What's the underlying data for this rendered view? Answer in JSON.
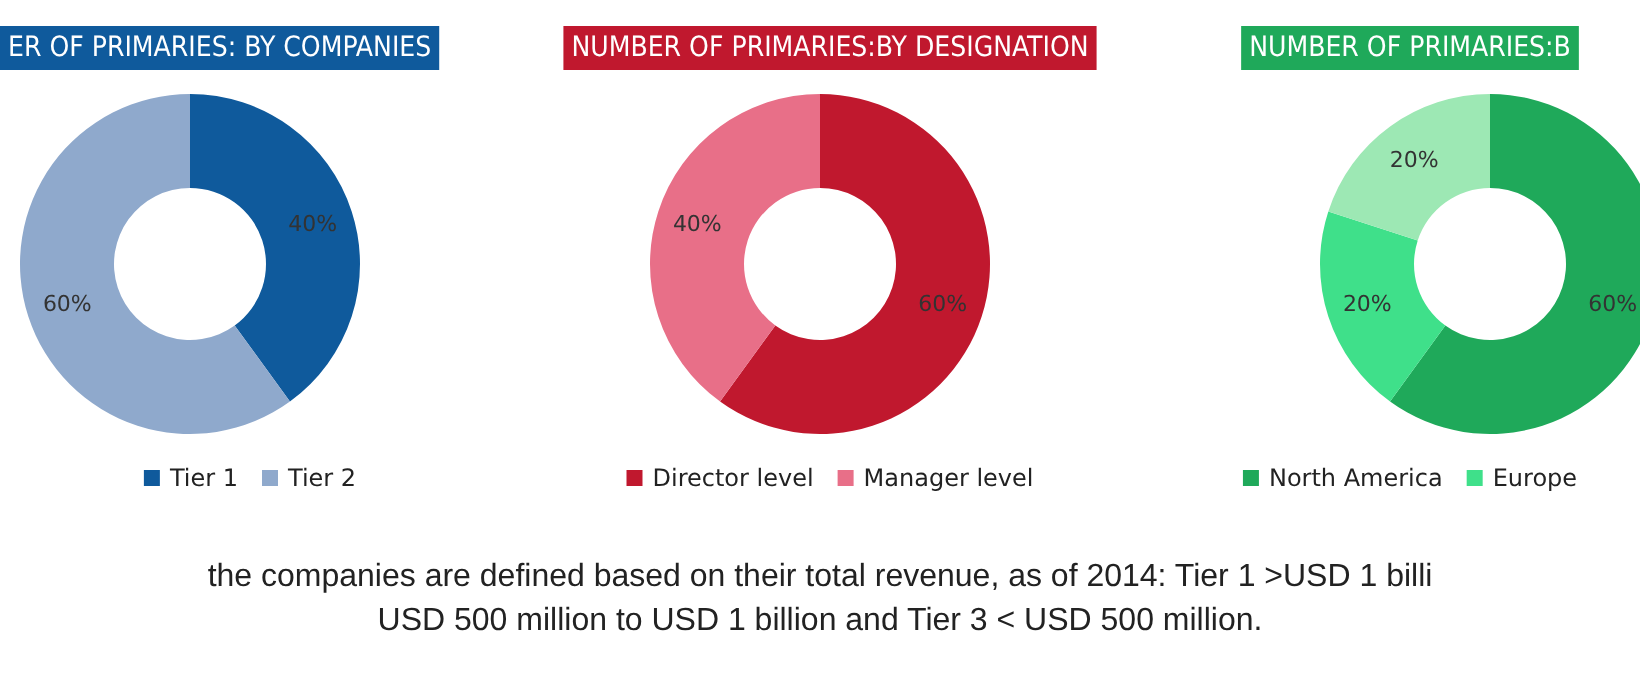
{
  "chart_data": [
    {
      "type": "donut",
      "title": "ER OF PRIMARIES: BY COMPANIES",
      "categories": [
        "Tier 1",
        "Tier 2"
      ],
      "values": [
        40,
        60
      ],
      "colors": [
        "#0f5a9c",
        "#8fa9cc"
      ],
      "value_labels": [
        "40%",
        "60%"
      ],
      "legend": "bottom"
    },
    {
      "type": "donut",
      "title": "NUMBER OF PRIMARIES:BY DESIGNATION",
      "categories": [
        "Director level",
        "Manager level"
      ],
      "values": [
        60,
        40
      ],
      "colors": [
        "#c0182e",
        "#e86f88"
      ],
      "value_labels": [
        "60%",
        "40%"
      ],
      "legend": "bottom"
    },
    {
      "type": "donut",
      "title": "NUMBER OF PRIMARIES:B",
      "categories": [
        "North America",
        "Europe",
        null
      ],
      "values": [
        60,
        20,
        20
      ],
      "colors": [
        "#1fa95a",
        "#3fe08a",
        "#9de8b4"
      ],
      "value_labels": [
        "60%",
        "20%",
        "20%"
      ],
      "legend": "bottom"
    },
    {
      "type": "other",
      "annotations": [
        "the companies are defined based on their total revenue, as of 2014: Tier 1 >USD 1 billi",
        "USD 500 million to USD 1 billion and Tier 3 < USD 500 million."
      ]
    }
  ]
}
